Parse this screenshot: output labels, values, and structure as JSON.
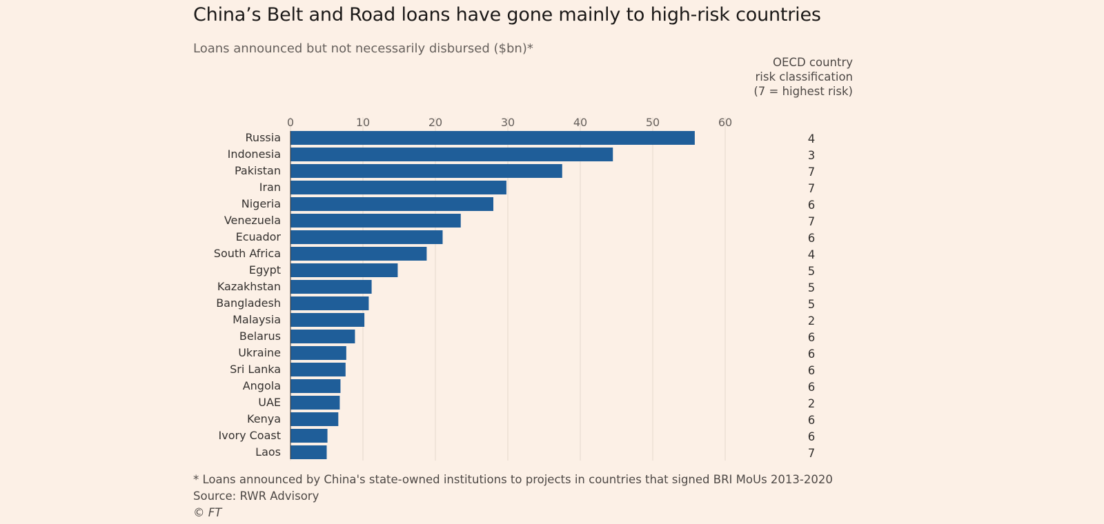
{
  "title": "China’s Belt and Road loans have gone mainly to high-risk countries",
  "subtitle": "Loans announced but not necessarily disbursed ($bn)*",
  "risk_header": [
    "OECD country",
    "risk classification",
    "(7 = highest risk)"
  ],
  "footnote": "* Loans announced by China's state-owned institutions to projects in countries that signed BRI MoUs 2013-2020",
  "source": "Source: RWR Advisory",
  "copyright": "© FT",
  "colors": {
    "bar": "#1f5e99",
    "grid": "#e3d7cc",
    "background": "#fcf0e6"
  },
  "chart_data": {
    "type": "bar",
    "orientation": "horizontal",
    "title": "China’s Belt and Road loans have gone mainly to high-risk countries",
    "subtitle": "Loans announced but not necessarily disbursed ($bn)*",
    "xlim": [
      0,
      60
    ],
    "xticks": [
      0,
      10,
      20,
      30,
      40,
      50,
      60
    ],
    "x_axis_position": "top",
    "grid": true,
    "categories": [
      "Russia",
      "Indonesia",
      "Pakistan",
      "Iran",
      "Nigeria",
      "Venezuela",
      "Ecuador",
      "South Africa",
      "Egypt",
      "Kazakhstan",
      "Bangladesh",
      "Malaysia",
      "Belarus",
      "Ukraine",
      "Sri Lanka",
      "Angola",
      "UAE",
      "Kenya",
      "Ivory Coast",
      "Laos"
    ],
    "values": [
      55.8,
      44.5,
      37.5,
      29.8,
      28.0,
      23.5,
      21.0,
      18.8,
      14.8,
      11.2,
      10.8,
      10.2,
      8.9,
      7.7,
      7.6,
      6.9,
      6.8,
      6.6,
      5.1,
      5.0
    ],
    "risk_classification": [
      4,
      3,
      7,
      7,
      6,
      7,
      6,
      4,
      5,
      5,
      5,
      2,
      6,
      6,
      6,
      6,
      2,
      6,
      6,
      7
    ]
  }
}
